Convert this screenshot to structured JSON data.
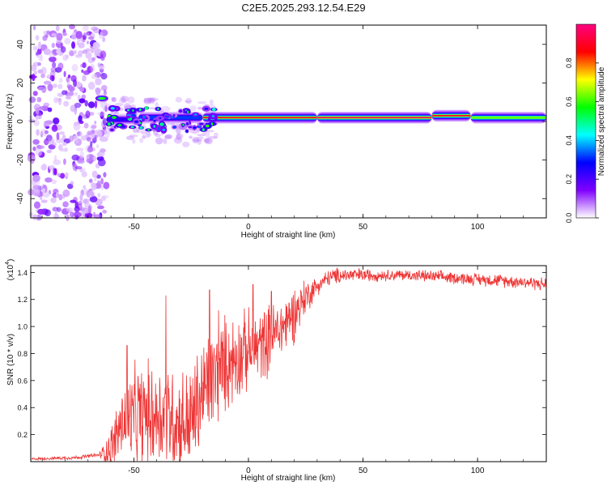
{
  "page_title": "C2E5.2025.293.12.54.E29",
  "chart_data": [
    {
      "type": "heatmap",
      "title": "C2E5.2025.293.12.54.E29",
      "xlabel": "Height of straight line (km)",
      "ylabel": "Frequency (Hz)",
      "xlim": [
        -95,
        130
      ],
      "ylim": [
        -50,
        50
      ],
      "x_ticks": [
        -50,
        0,
        50,
        100
      ],
      "y_ticks": [
        -40,
        -20,
        0,
        20,
        40
      ],
      "colorbar": {
        "label": "Normalized spectral amplitude",
        "range": [
          0,
          1
        ],
        "ticks": [
          "0.0",
          "0.2",
          "0.4",
          "0.6",
          "0.8"
        ],
        "tick_values": [
          0.0,
          0.2,
          0.4,
          0.6,
          0.8
        ],
        "colors": [
          "#ffffff",
          "#8000ff",
          "#0000ff",
          "#00ffff",
          "#00ff00",
          "#ffff00",
          "#ff0000",
          "#ff0080"
        ]
      },
      "features": {
        "noise_band_x": [
          -95,
          -65
        ],
        "carrier_segments": [
          {
            "x0": -62,
            "x1": -48,
            "f": 1,
            "amp": 0.45
          },
          {
            "x0": -48,
            "x1": -20,
            "f": 2,
            "amp": 0.6
          },
          {
            "x0": -20,
            "x1": 30,
            "f": 2,
            "amp": 0.9
          },
          {
            "x0": 30,
            "x1": 80,
            "f": 2,
            "amp": 0.95
          },
          {
            "x0": 80,
            "x1": 97,
            "f": 3,
            "amp": 0.9
          },
          {
            "x0": 97,
            "x1": 130,
            "f": 2,
            "amp": 0.85
          }
        ],
        "burst_at": {
          "x": -64,
          "f": 12,
          "amp": 0.6
        }
      }
    },
    {
      "type": "line",
      "xlabel": "Height of straight line (km)",
      "ylabel": "SNR (10 * v/v)",
      "yscale_label": "(x10",
      "yscale_exp": "4",
      "xlim": [
        -95,
        130
      ],
      "ylim": [
        0.0,
        1.45
      ],
      "x_ticks": [
        -50,
        0,
        50,
        100
      ],
      "y_ticks": [
        0.2,
        0.4,
        0.6,
        0.8,
        1.0,
        1.2,
        1.4
      ],
      "y_tick_labels": [
        "0.2",
        "0.4",
        "0.6",
        "0.8",
        "1.0",
        "1.2",
        "1.4"
      ],
      "series": [
        {
          "name": "SNR",
          "color": "#ee3333",
          "envelope_x": [
            -95,
            -75,
            -65,
            -60,
            -55,
            -50,
            -45,
            -40,
            -35,
            -30,
            -25,
            -20,
            -15,
            -10,
            -5,
            0,
            5,
            10,
            15,
            20,
            25,
            30,
            35,
            40,
            50,
            60,
            70,
            80,
            90,
            100,
            110,
            120,
            130
          ],
          "envelope_y": [
            0.02,
            0.03,
            0.05,
            0.1,
            0.3,
            0.32,
            0.35,
            0.35,
            0.35,
            0.28,
            0.3,
            0.5,
            0.62,
            0.72,
            0.78,
            0.82,
            0.86,
            0.92,
            1.0,
            1.1,
            1.22,
            1.3,
            1.36,
            1.38,
            1.38,
            1.38,
            1.38,
            1.37,
            1.36,
            1.35,
            1.34,
            1.33,
            1.31
          ],
          "noise_amplitude_x": [
            -95,
            -65,
            -60,
            -50,
            -20,
            0,
            20,
            30,
            60,
            130
          ],
          "noise_amplitude_y": [
            0.01,
            0.02,
            0.2,
            0.45,
            0.5,
            0.35,
            0.25,
            0.08,
            0.05,
            0.06
          ],
          "peaks": [
            {
              "x": -53,
              "y": 0.86
            },
            {
              "x": -36,
              "y": 1.23
            },
            {
              "x": -17,
              "y": 1.27
            },
            {
              "x": -13,
              "y": 1.12
            },
            {
              "x": 2,
              "y": 1.31
            },
            {
              "x": 10,
              "y": 1.26
            }
          ]
        }
      ]
    }
  ]
}
